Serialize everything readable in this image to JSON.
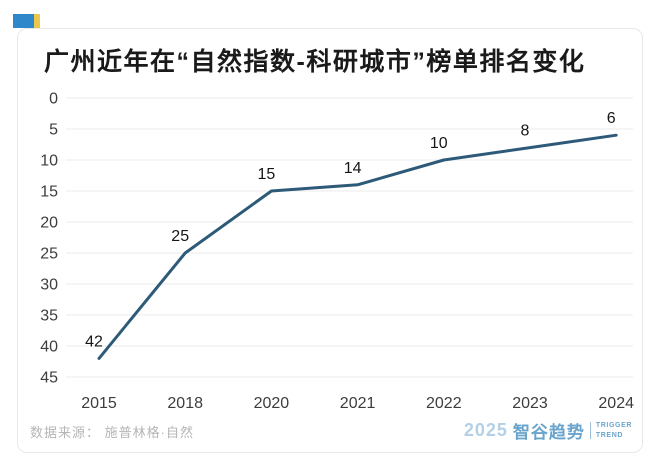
{
  "title": "广州近年在“自然指数-科研城市”榜单排名变化",
  "brand_chip": {
    "blue": "#2f88c9",
    "yellow": "#e9c94d"
  },
  "chart_data": {
    "type": "line",
    "title": "广州近年在“自然指数-科研城市”榜单排名变化",
    "categories": [
      "2015",
      "2018",
      "2020",
      "2021",
      "2022",
      "2023",
      "2024"
    ],
    "values": [
      42,
      25,
      15,
      14,
      10,
      8,
      6
    ],
    "data_labels": [
      "42",
      "25",
      "15",
      "14",
      "10",
      "8",
      "6"
    ],
    "xlabel": "",
    "ylabel": "",
    "y_ticks": [
      0,
      5,
      10,
      15,
      20,
      25,
      30,
      35,
      40,
      45
    ],
    "ylim": [
      0,
      45
    ],
    "y_inverted": true,
    "grid": "horizontal",
    "legend": "none",
    "line_color": "#2d5a78",
    "gridline_color": "#ebebeb",
    "axis_label_color": "#3d3d3d",
    "data_label_color": "#161616"
  },
  "footer": {
    "source_label": "数据来源： 施普林格·自然",
    "logo": {
      "year": "2025",
      "name": "智谷趋势",
      "en_line1": "TRIGGER",
      "en_line2": "TREND"
    }
  }
}
